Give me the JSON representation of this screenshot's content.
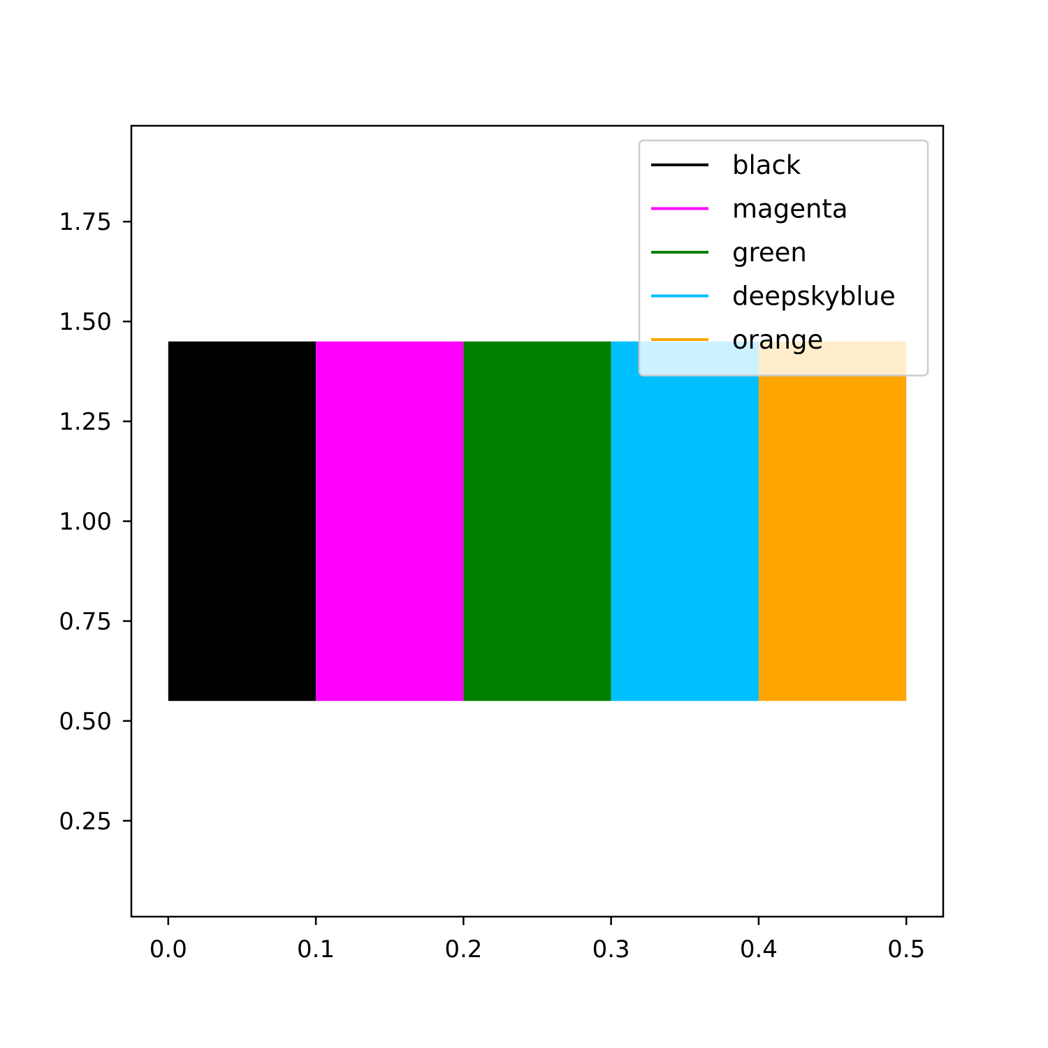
{
  "chart_data": {
    "type": "bar",
    "orientation": "vertical",
    "bars": [
      {
        "name": "black",
        "x_start": 0.0,
        "x_end": 0.1,
        "y_bottom": 0.55,
        "y_top": 1.45,
        "color": "#000000"
      },
      {
        "name": "magenta",
        "x_start": 0.1,
        "x_end": 0.2,
        "y_bottom": 0.55,
        "y_top": 1.45,
        "color": "#ff00ff"
      },
      {
        "name": "green",
        "x_start": 0.2,
        "x_end": 0.3,
        "y_bottom": 0.55,
        "y_top": 1.45,
        "color": "#008000"
      },
      {
        "name": "deepskyblue",
        "x_start": 0.3,
        "x_end": 0.4,
        "y_bottom": 0.55,
        "y_top": 1.45,
        "color": "#00bfff"
      },
      {
        "name": "orange",
        "x_start": 0.4,
        "x_end": 0.5,
        "y_bottom": 0.55,
        "y_top": 1.45,
        "color": "#ffa500"
      }
    ],
    "xlim": [
      -0.025,
      0.525
    ],
    "ylim": [
      0.01,
      1.99
    ],
    "x_ticks": [
      0.0,
      0.1,
      0.2,
      0.3,
      0.4,
      0.5
    ],
    "x_tick_labels": [
      "0.0",
      "0.1",
      "0.2",
      "0.3",
      "0.4",
      "0.5"
    ],
    "y_ticks": [
      0.25,
      0.5,
      0.75,
      1.0,
      1.25,
      1.5,
      1.75
    ],
    "y_tick_labels": [
      "0.25",
      "0.50",
      "0.75",
      "1.00",
      "1.25",
      "1.50",
      "1.75"
    ],
    "title": "",
    "xlabel": "",
    "ylabel": "",
    "grid": false,
    "legend": {
      "placement": "upper right",
      "entries": [
        {
          "label": "black",
          "color": "#000000"
        },
        {
          "label": "magenta",
          "color": "#ff00ff"
        },
        {
          "label": "green",
          "color": "#008000"
        },
        {
          "label": "deepskyblue",
          "color": "#00bfff"
        },
        {
          "label": "orange",
          "color": "#ffa500"
        }
      ]
    }
  }
}
